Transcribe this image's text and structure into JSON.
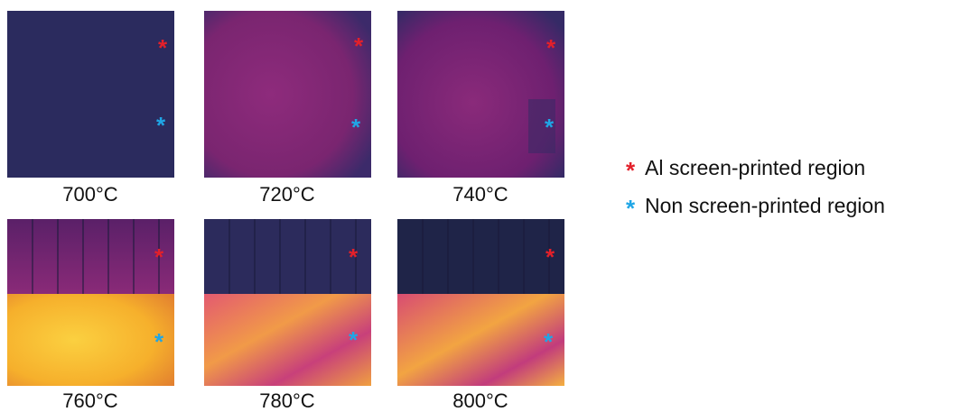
{
  "panels": [
    {
      "label": "700°C"
    },
    {
      "label": "720°C"
    },
    {
      "label": "740°C"
    },
    {
      "label": "760°C"
    },
    {
      "label": "780°C"
    },
    {
      "label": "800°C"
    }
  ],
  "legend": {
    "items": [
      {
        "marker": "*",
        "text": "Al screen-printed region"
      },
      {
        "marker": "*",
        "text": "Non screen-printed region"
      }
    ]
  }
}
